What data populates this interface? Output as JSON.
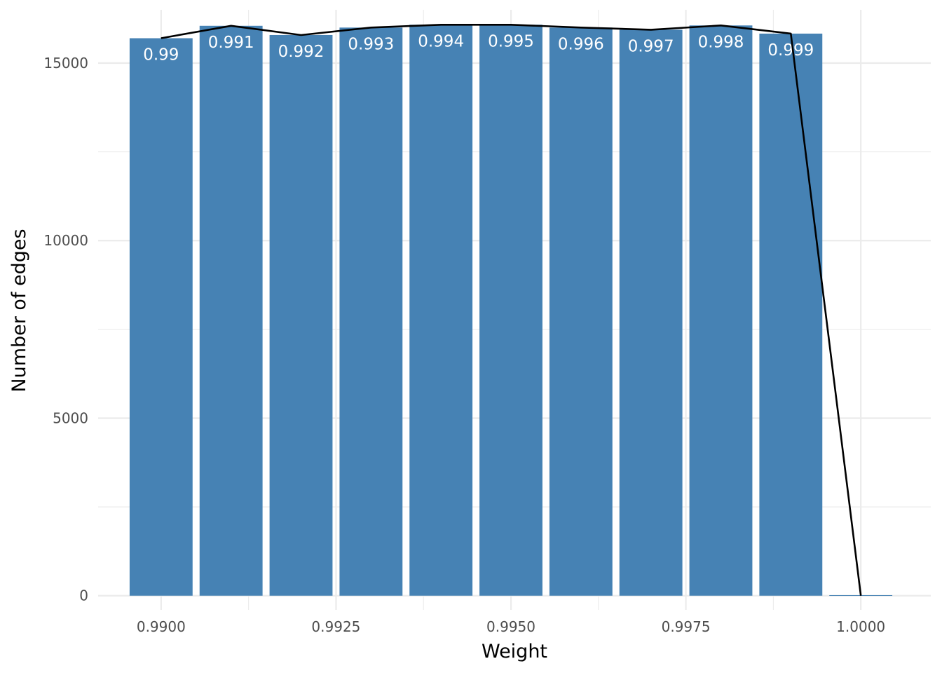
{
  "chart_data": {
    "type": "bar",
    "title": "",
    "xlabel": "Weight",
    "ylabel": "Number of edges",
    "x": [
      0.99,
      0.991,
      0.992,
      0.993,
      0.994,
      0.995,
      0.996,
      0.997,
      0.998,
      0.999,
      1.0
    ],
    "values": [
      15700,
      16050,
      15790,
      16000,
      16080,
      16080,
      16000,
      15940,
      16060,
      15830,
      15
    ],
    "bar_labels": [
      "0.99",
      "0.991",
      "0.992",
      "0.993",
      "0.994",
      "0.995",
      "0.996",
      "0.997",
      "0.998",
      "0.999",
      ""
    ],
    "overlay_line": {
      "type": "line",
      "color": "#000000",
      "x": [
        0.99,
        0.991,
        0.992,
        0.993,
        0.994,
        0.995,
        0.996,
        0.997,
        0.998,
        0.999,
        1.0
      ],
      "y": [
        15700,
        16050,
        15790,
        16000,
        16080,
        16080,
        16000,
        15940,
        16060,
        15830,
        0
      ]
    },
    "xlim": [
      0.9891,
      1.001
    ],
    "ylim": [
      -400,
      16500
    ],
    "x_ticks": [
      0.99,
      0.9925,
      0.995,
      0.9975,
      1.0
    ],
    "x_tick_labels": [
      "0.9900",
      "0.9925",
      "0.9950",
      "0.9975",
      "1.0000"
    ],
    "y_ticks": [
      0,
      5000,
      10000,
      15000
    ],
    "y_tick_labels": [
      "0",
      "5000",
      "10000",
      "15000"
    ],
    "grid": true,
    "bar_color": "#4682b4",
    "bar_label_color": "#ffffff",
    "background": "#ffffff",
    "grid_color": "#ebebeb"
  }
}
